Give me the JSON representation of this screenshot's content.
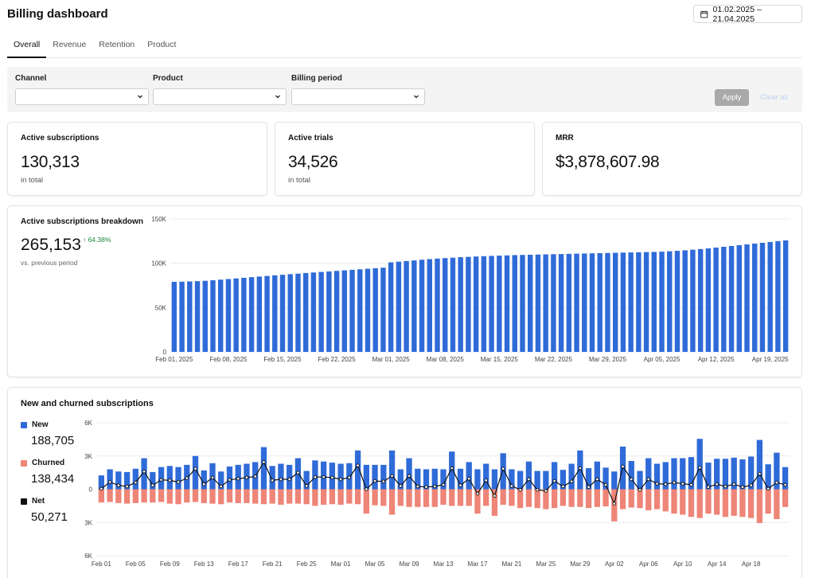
{
  "header": {
    "title": "Billing dashboard",
    "date_range": "01.02.2025 – 21.04.2025"
  },
  "tabs": [
    {
      "label": "Overall",
      "active": true
    },
    {
      "label": "Revenue",
      "active": false
    },
    {
      "label": "Retention",
      "active": false
    },
    {
      "label": "Product",
      "active": false
    }
  ],
  "filters": {
    "channel_label": "Channel",
    "product_label": "Product",
    "period_label": "Billing period",
    "channel_value": "",
    "product_value": "",
    "period_value": "",
    "apply_label": "Apply",
    "clear_label": "Clear all"
  },
  "kpis": {
    "active_subs": {
      "title": "Active subscriptions",
      "value": "130,313",
      "sub": "in total"
    },
    "active_trials": {
      "title": "Active trials",
      "value": "34,526",
      "sub": "in total"
    },
    "mrr": {
      "title": "MRR",
      "value": "$3,878,607.98",
      "sub": ""
    }
  },
  "breakdown": {
    "title": "Active subscriptions breakdown",
    "value": "265,153",
    "delta": "↑ 64.38%",
    "sub": "vs. previous period"
  },
  "new_churned": {
    "title": "New and churned subscriptions",
    "new_label": "New",
    "new_value": "188,705",
    "churned_label": "Churned",
    "churned_value": "138,434",
    "net_label": "Net",
    "net_value": "50,271"
  },
  "colors": {
    "bar": "#2f6bd8",
    "churn": "#ee8577",
    "net": "#111111",
    "delta_up": "#1b8a3a"
  },
  "chart_data": [
    {
      "type": "bar",
      "title": "Active subscriptions breakdown",
      "x_tick_labels": [
        "Feb 01, 2025",
        "Feb 08, 2025",
        "Feb 15, 2025",
        "Feb 22, 2025",
        "Mar 01, 2025",
        "Mar 08, 2025",
        "Mar 15, 2025",
        "Mar 22, 2025",
        "Mar 29, 2025",
        "Apr 05, 2025",
        "Apr 12, 2025",
        "Apr 19, 2025"
      ],
      "y_tick_labels": [
        "0",
        "50K",
        "100K",
        "150K"
      ],
      "ylim": [
        0,
        150000
      ],
      "grid": true,
      "values": [
        79000,
        79200,
        79500,
        79800,
        80200,
        80800,
        81500,
        82200,
        82900,
        83600,
        84300,
        85000,
        85700,
        86400,
        87000,
        87700,
        88300,
        89000,
        89600,
        90200,
        90800,
        91400,
        92000,
        92600,
        93200,
        93800,
        94400,
        95000,
        101000,
        101800,
        102500,
        103200,
        104000,
        104700,
        105300,
        105800,
        106300,
        106800,
        107200,
        107600,
        108000,
        108300,
        108600,
        108900,
        109200,
        109400,
        109600,
        109800,
        110000,
        110200,
        110400,
        110600,
        110800,
        111000,
        111200,
        111400,
        111600,
        111800,
        112000,
        112200,
        112400,
        112600,
        112800,
        113100,
        113500,
        114000,
        114600,
        115300,
        116000,
        116800,
        117700,
        118600,
        119500,
        120400,
        121300,
        122200,
        123100,
        124000,
        125000,
        125800
      ]
    },
    {
      "type": "bar",
      "title": "New and churned subscriptions",
      "x_tick_labels": [
        "Feb 01",
        "Feb 05",
        "Feb 09",
        "Feb 13",
        "Feb 17",
        "Feb 21",
        "Feb 25",
        "Mar 01",
        "Mar 05",
        "Mar 09",
        "Mar 13",
        "Mar 17",
        "Mar 21",
        "Mar 25",
        "Mar 29",
        "Apr 02",
        "Apr 06",
        "Apr 10",
        "Apr 14",
        "Apr 18"
      ],
      "y_tick_labels": [
        "6K",
        "3K",
        "0",
        "3K",
        "6K"
      ],
      "ylim": [
        -6000,
        6000
      ],
      "grid": true,
      "series": [
        {
          "name": "New",
          "values": [
            1250,
            1800,
            1600,
            1550,
            1850,
            2800,
            1550,
            2000,
            2100,
            2000,
            2200,
            3000,
            1700,
            2350,
            1600,
            2050,
            2200,
            2300,
            2450,
            3800,
            2100,
            2300,
            2200,
            2800,
            1650,
            2600,
            2500,
            2400,
            2300,
            2350,
            3500,
            2200,
            2200,
            2200,
            3500,
            1800,
            2800,
            1850,
            1800,
            1850,
            1800,
            3400,
            1850,
            2450,
            1800,
            2300,
            1800,
            3250,
            1800,
            1650,
            2500,
            1650,
            1650,
            2450,
            1750,
            2300,
            3500,
            1900,
            2500,
            1950,
            1600,
            3850,
            2550,
            1650,
            2800,
            2300,
            2450,
            2800,
            2800,
            2900,
            4550,
            2400,
            2750,
            2750,
            2850,
            2700,
            2950,
            4450,
            2250,
            3300,
            2000
          ]
        },
        {
          "name": "Churned",
          "values": [
            1200,
            1150,
            1250,
            1300,
            1250,
            1200,
            1200,
            1150,
            1300,
            1350,
            1200,
            1150,
            1250,
            1300,
            1350,
            1200,
            1250,
            1250,
            1300,
            1350,
            1300,
            1400,
            1300,
            1300,
            1350,
            1500,
            1400,
            1350,
            1400,
            1300,
            1350,
            2200,
            1450,
            1500,
            2300,
            1500,
            1600,
            1600,
            1600,
            1600,
            1400,
            1500,
            1500,
            1500,
            2200,
            1500,
            2400,
            1400,
            1500,
            1700,
            1600,
            1700,
            1800,
            1700,
            1500,
            1600,
            1600,
            1700,
            1600,
            1550,
            2900,
            1800,
            1650,
            1700,
            1900,
            1800,
            2000,
            2200,
            2300,
            2500,
            2600,
            2200,
            2300,
            2500,
            2400,
            2500,
            2600,
            3050,
            2200,
            2700,
            1600
          ]
        },
        {
          "name": "Net",
          "values": [
            50,
            650,
            350,
            250,
            600,
            1600,
            350,
            850,
            800,
            650,
            1000,
            1850,
            450,
            1050,
            250,
            850,
            950,
            1050,
            1150,
            2450,
            800,
            900,
            900,
            1500,
            300,
            1100,
            1100,
            1050,
            900,
            1050,
            2150,
            0,
            750,
            700,
            1200,
            300,
            1200,
            250,
            200,
            250,
            400,
            1900,
            350,
            950,
            -400,
            800,
            -600,
            1850,
            300,
            -50,
            900,
            -50,
            -150,
            750,
            250,
            700,
            1900,
            200,
            900,
            400,
            -1300,
            2050,
            900,
            -50,
            900,
            500,
            450,
            600,
            500,
            400,
            1950,
            200,
            450,
            250,
            450,
            200,
            350,
            1400,
            50,
            600,
            400
          ]
        }
      ]
    }
  ]
}
